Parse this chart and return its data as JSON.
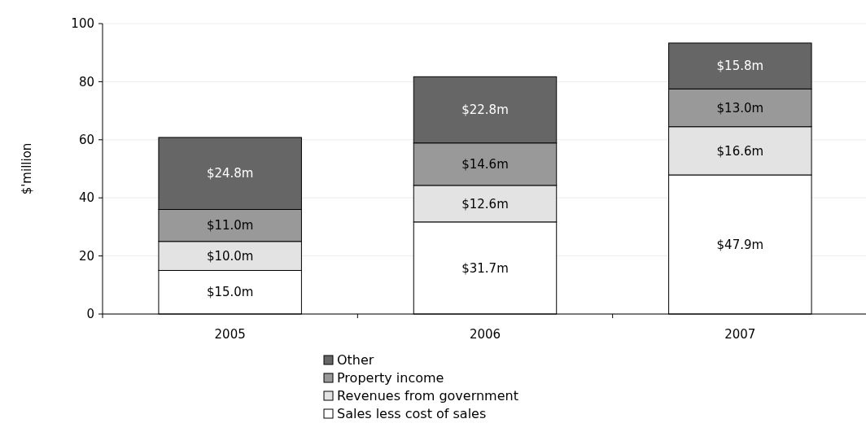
{
  "chart_data": {
    "type": "bar",
    "stacked": true,
    "ylabel": "$'million",
    "categories": [
      "2005",
      "2006",
      "2007"
    ],
    "ylim": [
      0,
      100
    ],
    "yticks": [
      0,
      20,
      40,
      60,
      80,
      100
    ],
    "grid": "y",
    "legend": "bottom",
    "series": [
      {
        "name": "Sales less cost of sales",
        "color": "#ffffff",
        "values": [
          15.0,
          31.7,
          47.9
        ],
        "value_labels": [
          "$15.0m",
          "$31.7m",
          "$47.9m"
        ]
      },
      {
        "name": "Revenues from government",
        "color": "#e3e3e3",
        "values": [
          10.0,
          12.6,
          16.6
        ],
        "value_labels": [
          "$10.0m",
          "$12.6m",
          "$16.6m"
        ]
      },
      {
        "name": "Property income",
        "color": "#999999",
        "values": [
          11.0,
          14.6,
          13.0
        ],
        "value_labels": [
          "$11.0m",
          "$14.6m",
          "$13.0m"
        ]
      },
      {
        "name": "Other",
        "color": "#666666",
        "values": [
          24.8,
          22.8,
          15.8
        ],
        "value_labels": [
          "$24.8m",
          "$22.8m",
          "$15.8m"
        ]
      }
    ]
  }
}
